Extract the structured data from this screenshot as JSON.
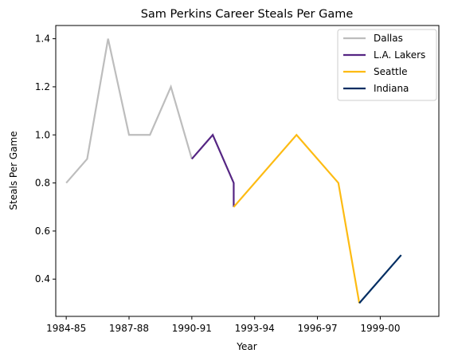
{
  "chart_data": {
    "type": "line",
    "title": "Sam Perkins Career Steals Per Game",
    "xlabel": "Year",
    "ylabel": "Steals Per Game",
    "x_tick_labels": [
      "1984-85",
      "1987-88",
      "1990-91",
      "1993-94",
      "1996-97",
      "1999-00"
    ],
    "x_tick_positions": [
      1984,
      1987,
      1990,
      1993,
      1996,
      1999
    ],
    "y_ticks": [
      0.4,
      0.6,
      0.8,
      1.0,
      1.2,
      1.4
    ],
    "y_tick_labels": [
      "0.4",
      "0.6",
      "0.8",
      "1.0",
      "1.2",
      "1.4"
    ],
    "xlim": [
      1983.5,
      2001.8
    ],
    "ylim": [
      0.245,
      1.455
    ],
    "grid": false,
    "legend_position": "top-right",
    "series": [
      {
        "name": "Dallas",
        "color": "#bdbdbd",
        "x": [
          1984,
          1985,
          1986,
          1987,
          1988,
          1989,
          1990
        ],
        "y": [
          0.8,
          0.9,
          1.4,
          1.0,
          1.0,
          1.2,
          0.9
        ]
      },
      {
        "name": "L.A. Lakers",
        "color": "#552583",
        "x": [
          1990,
          1991,
          1992,
          1992
        ],
        "y": [
          0.9,
          1.0,
          0.8,
          0.7
        ]
      },
      {
        "name": "Seattle",
        "color": "#fdbb13",
        "x": [
          1992,
          1995,
          1997,
          1998
        ],
        "y": [
          0.7,
          1.0,
          0.8,
          0.3
        ]
      },
      {
        "name": "Indiana",
        "color": "#002d62",
        "x": [
          1998,
          2000
        ],
        "y": [
          0.3,
          0.5
        ]
      }
    ]
  }
}
